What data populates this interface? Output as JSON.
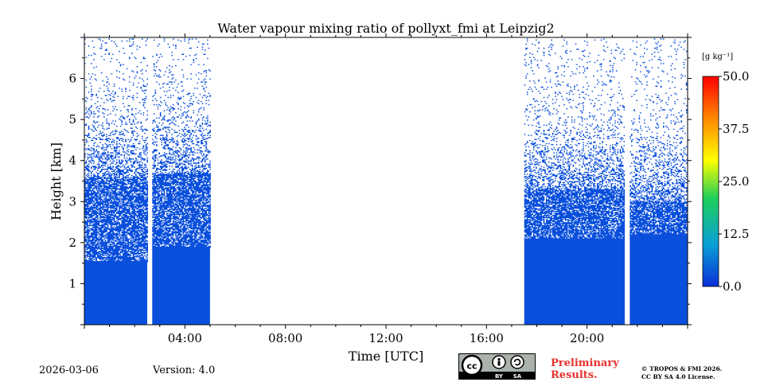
{
  "chart_data": {
    "type": "heatmap",
    "title": "Water vapour mixing ratio of pollyxt_fmi at Leipzig2",
    "xlabel": "Time [UTC]",
    "ylabel": "Height [km]",
    "xlim_hours": [
      0,
      24
    ],
    "ylim_km": [
      0,
      7
    ],
    "x_ticks": [
      {
        "hour": 4,
        "label": "04:00"
      },
      {
        "hour": 8,
        "label": "08:00"
      },
      {
        "hour": 12,
        "label": "12:00"
      },
      {
        "hour": 16,
        "label": "16:00"
      },
      {
        "hour": 20,
        "label": "20:00"
      }
    ],
    "y_ticks": [
      {
        "km": 1,
        "label": "1"
      },
      {
        "km": 2,
        "label": "2"
      },
      {
        "km": 3,
        "label": "3"
      },
      {
        "km": 4,
        "label": "4"
      },
      {
        "km": 5,
        "label": "5"
      },
      {
        "km": 6,
        "label": "6"
      }
    ],
    "data_segments": [
      {
        "start_hour": 0.0,
        "end_hour": 2.5,
        "solid_top_km": 1.55,
        "dense_top_km": 3.6
      },
      {
        "start_hour": 2.7,
        "end_hour": 5.0,
        "solid_top_km": 1.9,
        "dense_top_km": 3.7
      },
      {
        "start_hour": 17.5,
        "end_hour": 21.5,
        "solid_top_km": 2.1,
        "dense_top_km": 3.3
      },
      {
        "start_hour": 21.7,
        "end_hour": 24.0,
        "solid_top_km": 2.2,
        "dense_top_km": 3.0
      }
    ],
    "dominant_value_g_per_kg": 0.0,
    "colorbar": {
      "unit_label": "[g kg⁻¹]",
      "range": [
        0,
        50
      ],
      "tick_values": [
        0,
        12.5,
        25,
        37.5,
        50
      ],
      "tick_labels": [
        "0.0",
        "12.5",
        "25.0",
        "37.5",
        "50.0"
      ],
      "colors": [
        "#0a2fd6",
        "#0a9fd6",
        "#1fcf5a",
        "#ffff00",
        "#ff8800",
        "#ff0000"
      ]
    },
    "data_color": "#0a4fdc"
  },
  "footer": {
    "date": "2026-03-06",
    "version": "Version: 4.0",
    "preliminary_line1": "Preliminary",
    "preliminary_line2": "Results.",
    "copyright_line1": "© TROPOS & FMI 2026.",
    "copyright_line2": "CC BY SA 4.0 License.",
    "license_badge_by": "BY",
    "license_badge_sa": "SA"
  }
}
